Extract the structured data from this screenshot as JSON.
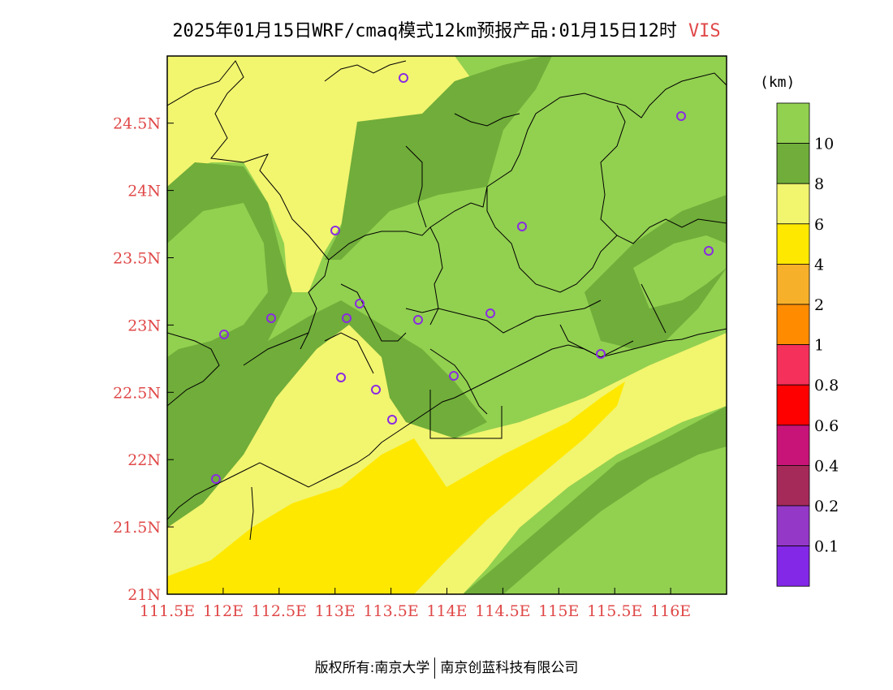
{
  "header": {
    "title": "2025年01月15日WRF/cmaq模式12km预报产品:01月15日12时",
    "variable": "VIS"
  },
  "axes": {
    "x_ticks": [
      "111.5E",
      "112E",
      "112.5E",
      "113E",
      "113.5E",
      "114E",
      "114.5E",
      "115E",
      "115.5E",
      "116E"
    ],
    "y_ticks": [
      "21N",
      "21.5N",
      "22N",
      "22.5N",
      "23N",
      "23.5N",
      "24N",
      "24.5N"
    ],
    "tick_color": "#e04848"
  },
  "legend": {
    "unit": "(km)",
    "labels": [
      "10",
      "8",
      "6",
      "4",
      "2",
      "1",
      "0.8",
      "0.6",
      "0.4",
      "0.2",
      "0.1"
    ],
    "colors": [
      "#92d050",
      "#70ad3a",
      "#f2f56e",
      "#ffe800",
      "#f7b02a",
      "#ff8c00",
      "#f5305a",
      "#ff0000",
      "#c81478",
      "#a52a5a",
      "#9438c8",
      "#8228e6"
    ]
  },
  "map": {
    "stations_icon": "circle-station-icon",
    "station_count": 17
  },
  "footer": {
    "left": "版权所有:南京大学",
    "right": "南京创蓝科技有限公司"
  }
}
